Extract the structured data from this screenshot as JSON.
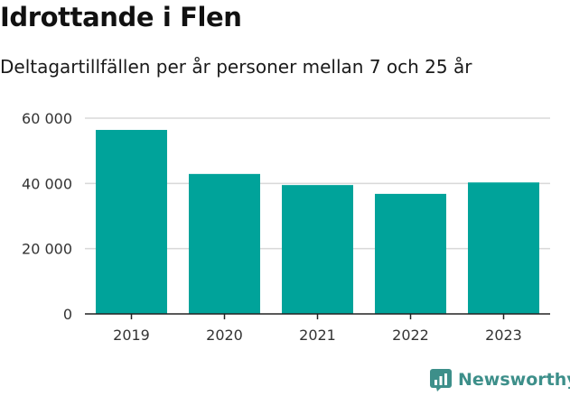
{
  "header": {
    "title": "Idrottande i Flen",
    "subtitle": "Deltagartillfällen per år personer mellan 7 och 25 år"
  },
  "brand": {
    "name": "Newsworthy",
    "icon": "newsworthy-logo-icon"
  },
  "colors": {
    "bar": "#00a39a",
    "grid": "#d9d9d9",
    "axis": "#222222",
    "brand": "#3d8f8a"
  },
  "chart_data": {
    "type": "bar",
    "categories": [
      "2019",
      "2020",
      "2021",
      "2022",
      "2023"
    ],
    "values": [
      56400,
      42900,
      39500,
      36800,
      40300
    ],
    "ylim": [
      0,
      60000
    ],
    "yticks": [
      0,
      20000,
      40000,
      60000
    ],
    "ytick_labels": [
      "0",
      "20 000",
      "40 000",
      "60 000"
    ],
    "grid": true
  }
}
